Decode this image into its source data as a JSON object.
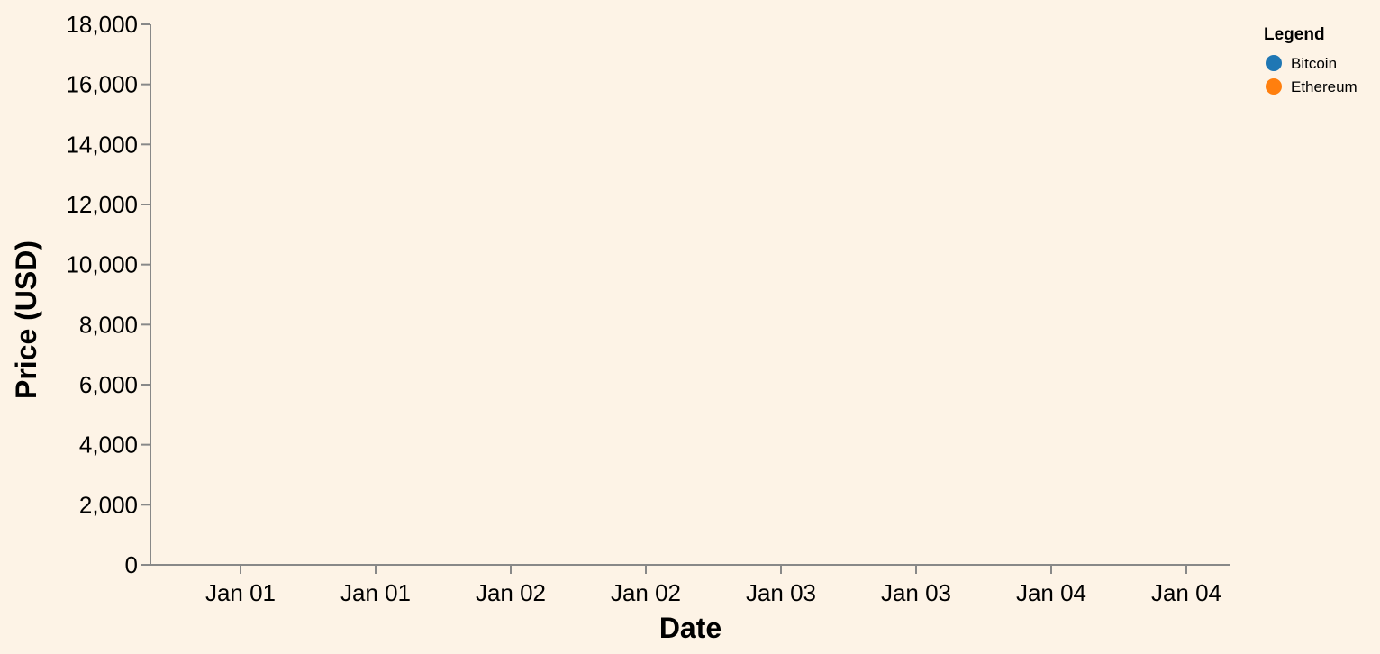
{
  "chart_data": {
    "type": "line",
    "title": "",
    "xlabel": "Date",
    "ylabel": "Price (USD)",
    "x_tick_labels": [
      "Jan 01",
      "Jan 01",
      "Jan 02",
      "Jan 02",
      "Jan 03",
      "Jan 03",
      "Jan 04",
      "Jan 04"
    ],
    "y_ticks": [
      0,
      2000,
      4000,
      6000,
      8000,
      10000,
      12000,
      14000,
      16000,
      18000
    ],
    "y_tick_labels": [
      "0",
      "2,000",
      "4,000",
      "6,000",
      "8,000",
      "10,000",
      "12,000",
      "14,000",
      "16,000",
      "18,000"
    ],
    "ylim": [
      0,
      18000
    ],
    "grid": false,
    "legend": {
      "title": "Legend",
      "placement": "top-right"
    },
    "series": [
      {
        "name": "Bitcoin",
        "color": "#1f77b4",
        "values": []
      },
      {
        "name": "Ethereum",
        "color": "#ff7f0e",
        "values": []
      }
    ],
    "background_color": "#fdf3e6",
    "axis_color": "#888888"
  }
}
